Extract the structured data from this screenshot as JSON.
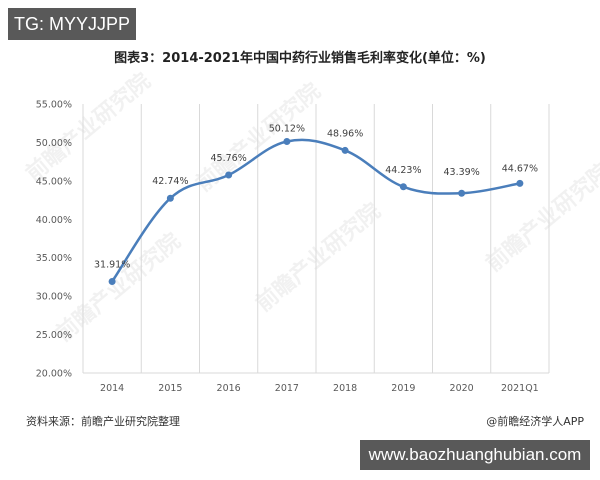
{
  "badge": {
    "text": "TG: MYYJJPP"
  },
  "title": "图表3：2014-2021年中国中药行业销售毛利率变化(单位：%)",
  "footer": {
    "source": "资料来源：前瞻产业研究院整理",
    "credit": "@前瞻经济学人APP"
  },
  "url_badge": {
    "text": "www.baozhuanghubian.com"
  },
  "watermark": "前瞻产业研究院",
  "colors": {
    "line": "#4a7ebb",
    "grid": "#d9d9d9"
  },
  "chart_data": {
    "type": "line",
    "title": "图表3：2014-2021年中国中药行业销售毛利率变化(单位：%)",
    "xlabel": "",
    "ylabel": "",
    "categories": [
      "2014",
      "2015",
      "2016",
      "2017",
      "2018",
      "2019",
      "2020",
      "2021Q1"
    ],
    "series": [
      {
        "name": "销售毛利率",
        "values": [
          31.91,
          42.74,
          45.76,
          50.12,
          48.96,
          44.23,
          43.39,
          44.67
        ]
      }
    ],
    "data_labels": [
      "31.91%",
      "42.74%",
      "45.76%",
      "50.12%",
      "48.96%",
      "44.23%",
      "43.39%",
      "44.67%"
    ],
    "yticks": [
      "20.00%",
      "25.00%",
      "30.00%",
      "35.00%",
      "40.00%",
      "45.00%",
      "50.00%",
      "55.00%"
    ],
    "ylim": [
      20,
      55
    ],
    "grid": "vertical category dividers only",
    "legend": "none",
    "smooth": true
  }
}
